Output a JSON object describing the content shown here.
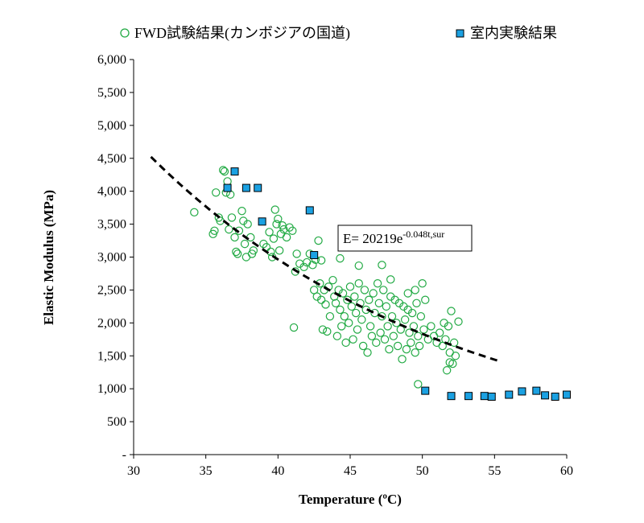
{
  "chart_data": {
    "type": "scatter",
    "xlabel": "Temperature (ºC)",
    "ylabel": "Elastic Modulus (MPa)",
    "xlim": [
      30,
      60
    ],
    "ylim": [
      0,
      6000
    ],
    "x_ticks": [
      30,
      35,
      40,
      45,
      50,
      55,
      60
    ],
    "x_tick_labels": [
      "30",
      "35",
      "40",
      "45",
      "50",
      "55",
      "60"
    ],
    "y_ticks": [
      0,
      500,
      1000,
      1500,
      2000,
      2500,
      3000,
      3500,
      4000,
      4500,
      5000,
      5500,
      6000
    ],
    "y_tick_labels": [
      "-",
      "500",
      "1,000",
      "1,500",
      "2,000",
      "2,500",
      "3,000",
      "3,500",
      "4,000",
      "4,500",
      "5,000",
      "5,500",
      "6,000"
    ],
    "grid": false,
    "legend_position": "top",
    "series": [
      {
        "name": "FWD試験結果(カンボジアの国道)",
        "marker": "circle-open",
        "color": "#22aa44",
        "points": [
          [
            34.2,
            3680
          ],
          [
            35.5,
            3350
          ],
          [
            35.6,
            3400
          ],
          [
            35.7,
            3980
          ],
          [
            35.9,
            3600
          ],
          [
            36.0,
            3550
          ],
          [
            36.2,
            4320
          ],
          [
            36.3,
            4300
          ],
          [
            36.4,
            3980
          ],
          [
            36.5,
            4150
          ],
          [
            36.6,
            3420
          ],
          [
            36.7,
            3950
          ],
          [
            36.8,
            3600
          ],
          [
            37.0,
            3300
          ],
          [
            37.1,
            3080
          ],
          [
            37.2,
            3050
          ],
          [
            37.3,
            3400
          ],
          [
            37.5,
            3700
          ],
          [
            37.6,
            3550
          ],
          [
            37.7,
            3200
          ],
          [
            37.8,
            3000
          ],
          [
            37.9,
            3500
          ],
          [
            38.1,
            3300
          ],
          [
            38.2,
            3050
          ],
          [
            38.3,
            3100
          ],
          [
            39.0,
            3200
          ],
          [
            39.2,
            3150
          ],
          [
            39.4,
            3380
          ],
          [
            39.5,
            3080
          ],
          [
            39.6,
            3000
          ],
          [
            39.7,
            3280
          ],
          [
            39.8,
            3720
          ],
          [
            39.9,
            3500
          ],
          [
            40.0,
            3580
          ],
          [
            40.1,
            3100
          ],
          [
            40.2,
            3350
          ],
          [
            40.3,
            3480
          ],
          [
            40.4,
            3420
          ],
          [
            40.6,
            3300
          ],
          [
            40.8,
            3450
          ],
          [
            41.0,
            3400
          ],
          [
            41.2,
            2780
          ],
          [
            41.3,
            3050
          ],
          [
            41.5,
            2900
          ],
          [
            41.8,
            2850
          ],
          [
            42.0,
            2920
          ],
          [
            42.2,
            3050
          ],
          [
            42.4,
            2880
          ],
          [
            42.6,
            2960
          ],
          [
            42.8,
            3250
          ],
          [
            43.0,
            2950
          ],
          [
            41.1,
            1930
          ],
          [
            42.5,
            2500
          ],
          [
            42.7,
            2400
          ],
          [
            42.9,
            2600
          ],
          [
            43.0,
            2350
          ],
          [
            43.2,
            2500
          ],
          [
            43.3,
            2280
          ],
          [
            43.5,
            2550
          ],
          [
            43.6,
            2100
          ],
          [
            43.8,
            2650
          ],
          [
            43.9,
            2400
          ],
          [
            44.0,
            2300
          ],
          [
            44.2,
            2500
          ],
          [
            44.3,
            2200
          ],
          [
            44.5,
            2450
          ],
          [
            44.6,
            2100
          ],
          [
            44.8,
            2350
          ],
          [
            44.9,
            2000
          ],
          [
            45.0,
            2550
          ],
          [
            45.1,
            2250
          ],
          [
            45.3,
            2400
          ],
          [
            45.4,
            2150
          ],
          [
            45.6,
            2600
          ],
          [
            45.7,
            2300
          ],
          [
            45.8,
            2050
          ],
          [
            46.0,
            2500
          ],
          [
            46.1,
            2200
          ],
          [
            46.3,
            2350
          ],
          [
            46.4,
            1950
          ],
          [
            46.6,
            2450
          ],
          [
            46.7,
            2150
          ],
          [
            46.9,
            2600
          ],
          [
            47.0,
            2300
          ],
          [
            47.2,
            2100
          ],
          [
            47.3,
            2500
          ],
          [
            47.5,
            2250
          ],
          [
            47.6,
            1950
          ],
          [
            47.8,
            2400
          ],
          [
            47.9,
            2100
          ],
          [
            48.1,
            2350
          ],
          [
            48.2,
            2000
          ],
          [
            48.4,
            2300
          ],
          [
            48.5,
            1900
          ],
          [
            48.7,
            2250
          ],
          [
            48.8,
            2050
          ],
          [
            49.0,
            2200
          ],
          [
            49.1,
            1850
          ],
          [
            49.3,
            2150
          ],
          [
            49.4,
            1950
          ],
          [
            49.6,
            2300
          ],
          [
            49.7,
            1800
          ],
          [
            49.9,
            2100
          ],
          [
            50.0,
            2600
          ],
          [
            50.1,
            1900
          ],
          [
            43.1,
            1900
          ],
          [
            43.4,
            1870
          ],
          [
            44.1,
            1800
          ],
          [
            44.4,
            1950
          ],
          [
            44.7,
            1700
          ],
          [
            45.2,
            1750
          ],
          [
            45.5,
            1900
          ],
          [
            45.9,
            1650
          ],
          [
            46.2,
            1550
          ],
          [
            46.5,
            1800
          ],
          [
            46.8,
            1700
          ],
          [
            47.1,
            1850
          ],
          [
            47.4,
            1750
          ],
          [
            47.7,
            1600
          ],
          [
            48.0,
            1800
          ],
          [
            48.3,
            1650
          ],
          [
            48.6,
            1450
          ],
          [
            48.9,
            1600
          ],
          [
            49.2,
            1700
          ],
          [
            49.5,
            1550
          ],
          [
            49.8,
            1650
          ],
          [
            44.3,
            2980
          ],
          [
            45.6,
            2870
          ],
          [
            47.2,
            2880
          ],
          [
            47.8,
            2660
          ],
          [
            49.0,
            2450
          ],
          [
            49.5,
            2500
          ],
          [
            50.2,
            2350
          ],
          [
            50.4,
            1750
          ],
          [
            50.6,
            1950
          ],
          [
            50.8,
            1800
          ],
          [
            51.0,
            1700
          ],
          [
            51.2,
            1850
          ],
          [
            51.4,
            1650
          ],
          [
            51.5,
            2000
          ],
          [
            51.6,
            1750
          ],
          [
            51.8,
            1950
          ],
          [
            51.9,
            1550
          ],
          [
            52.0,
            2180
          ],
          [
            52.2,
            1700
          ],
          [
            52.3,
            1500
          ],
          [
            52.5,
            2020
          ],
          [
            51.7,
            1280
          ],
          [
            51.9,
            1400
          ],
          [
            52.1,
            1380
          ],
          [
            49.7,
            1070
          ]
        ]
      },
      {
        "name": "室内実験結果",
        "marker": "square-filled",
        "color": "#1ba1e2",
        "points": [
          [
            36.5,
            4050
          ],
          [
            37.0,
            4300
          ],
          [
            37.8,
            4050
          ],
          [
            38.6,
            4050
          ],
          [
            38.9,
            3540
          ],
          [
            42.2,
            3710
          ],
          [
            42.5,
            3030
          ],
          [
            50.2,
            970
          ],
          [
            52.0,
            890
          ],
          [
            53.2,
            890
          ],
          [
            54.3,
            890
          ],
          [
            54.8,
            880
          ],
          [
            56.0,
            910
          ],
          [
            56.9,
            960
          ],
          [
            57.9,
            970
          ],
          [
            58.5,
            900
          ],
          [
            59.2,
            880
          ],
          [
            60.0,
            910
          ]
        ]
      }
    ],
    "trendline": {
      "style": "dashed",
      "color": "#000000",
      "equation_base": "E= 20219e",
      "equation_exponent": "-0.048t,sur",
      "coefficient": 20219,
      "rate": -0.048,
      "x_range": [
        31.2,
        55.5
      ]
    }
  }
}
